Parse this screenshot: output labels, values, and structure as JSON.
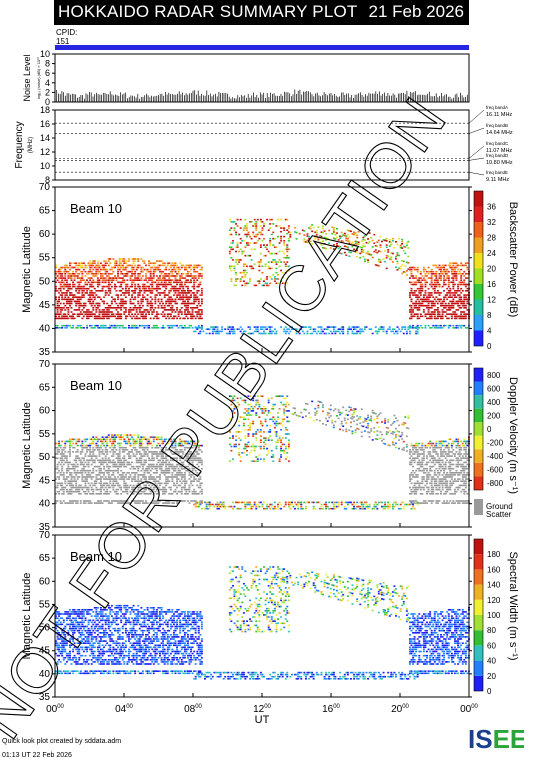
{
  "header": {
    "title": "HOKKAIDO RADAR SUMMARY PLOT",
    "date": "21 Feb 2026"
  },
  "cpid": {
    "label": "CPID:",
    "value": "151"
  },
  "footer": {
    "line1": "Quick look plot created by sddata.adm",
    "line2": "01:13 UT 22 Feb 2026"
  },
  "logo": {
    "text": "ISEE",
    "colors": [
      "#1a3f8c",
      "#1a3f8c",
      "#2aa33a",
      "#2aa33a"
    ]
  },
  "watermark": "NOT FOR PUBLICATION",
  "colors": {
    "cpid_bar": "#2626e0",
    "ground_scatter": "#9a9a9a"
  },
  "chart_data": [
    {
      "type": "bar",
      "name": "noise",
      "ylabel": "Noise Level",
      "ylabel_small": "log₁₀ (noise) (dB) × 10¹⁰",
      "ylim": [
        0,
        10
      ],
      "yticks": [
        0,
        2,
        4,
        6,
        8,
        10
      ],
      "values_description_free": [
        2,
        1.5,
        1.2,
        1.6,
        1.4,
        1.8,
        1.5,
        1.3,
        1.2,
        1.4,
        1.6,
        1.5,
        1.7,
        2.0,
        1.8,
        1.6,
        1.4,
        1.3,
        1.2,
        1.5,
        1.4,
        1.6,
        1.8,
        2.1,
        1.7,
        1.5,
        1.6,
        1.4,
        1.3,
        1.5,
        1.7,
        1.9,
        1.6,
        1.4,
        1.8,
        2.0,
        1.6,
        1.3,
        1.2,
        1.4
      ]
    },
    {
      "type": "line",
      "name": "frequency",
      "ylabel": "Frequency",
      "yunit": "(MHz)",
      "ylim": [
        8,
        18
      ],
      "yticks": [
        8,
        10,
        12,
        14,
        16,
        18
      ],
      "bands": [
        {
          "label": "freq bandA",
          "value": "16.11 MHz",
          "f": 16.11
        },
        {
          "label": "freq bandB",
          "value": "14.64 MHz",
          "f": 14.64
        },
        {
          "label": "freq bandC",
          "value": "11.07 MHz",
          "f": 11.07
        },
        {
          "label": "freq bandD",
          "value": "10.80 MHz",
          "f": 10.8
        },
        {
          "label": "freq bandE",
          "value": "9.11 MHz",
          "f": 9.11
        }
      ]
    },
    {
      "type": "heatmap",
      "name": "power",
      "beam_label": "Beam 10",
      "ylabel": "Magnetic Latitude",
      "ylim": [
        35,
        70
      ],
      "yticks": [
        35,
        40,
        45,
        50,
        55,
        60,
        65,
        70
      ],
      "colorbar": {
        "label": "Backscatter Power (dB)",
        "ticks": [
          "0",
          "4",
          "8",
          "12",
          "16",
          "20",
          "24",
          "28",
          "32",
          "36"
        ],
        "colors": [
          "#2020ff",
          "#2aa0ff",
          "#22c0a0",
          "#33c833",
          "#a0e020",
          "#f0e020",
          "#f0a020",
          "#f06018",
          "#e02020",
          "#c01010"
        ]
      }
    },
    {
      "type": "heatmap",
      "name": "velocity",
      "beam_label": "Beam 10",
      "ylabel": "Magnetic Latitude",
      "ylim": [
        35,
        70
      ],
      "yticks": [
        35,
        40,
        45,
        50,
        55,
        60,
        65,
        70
      ],
      "colorbar": {
        "label": "Doppler Velocity (m s⁻¹)",
        "ticks": [
          "-800",
          "-600",
          "-400",
          "-200",
          "0",
          "200",
          "400",
          "600",
          "800"
        ],
        "colors": [
          "#e03018",
          "#f07020",
          "#f0b020",
          "#f0f030",
          "#a0e030",
          "#30c030",
          "#30c0a0",
          "#2080ff",
          "#2020f0"
        ],
        "ground_scatter_label": [
          "Ground",
          "Scatter"
        ]
      }
    },
    {
      "type": "heatmap",
      "name": "width",
      "beam_label": "Beam 10",
      "ylabel": "Magnetic Latitude",
      "ylim": [
        35,
        70
      ],
      "yticks": [
        35,
        40,
        45,
        50,
        55,
        60,
        65,
        70
      ],
      "xlabel": "UT",
      "xticks": [
        "00",
        "04",
        "08",
        "12",
        "16",
        "20",
        "00"
      ],
      "colorbar": {
        "label": "Spectral Width (m s⁻¹)",
        "ticks": [
          "0",
          "20",
          "40",
          "60",
          "80",
          "100",
          "120",
          "140",
          "160",
          "180"
        ],
        "colors": [
          "#2020f0",
          "#2080ff",
          "#30c0c0",
          "#30c030",
          "#a0e030",
          "#f0f030",
          "#f0b020",
          "#f07020",
          "#e03018",
          "#c01010"
        ]
      }
    }
  ]
}
